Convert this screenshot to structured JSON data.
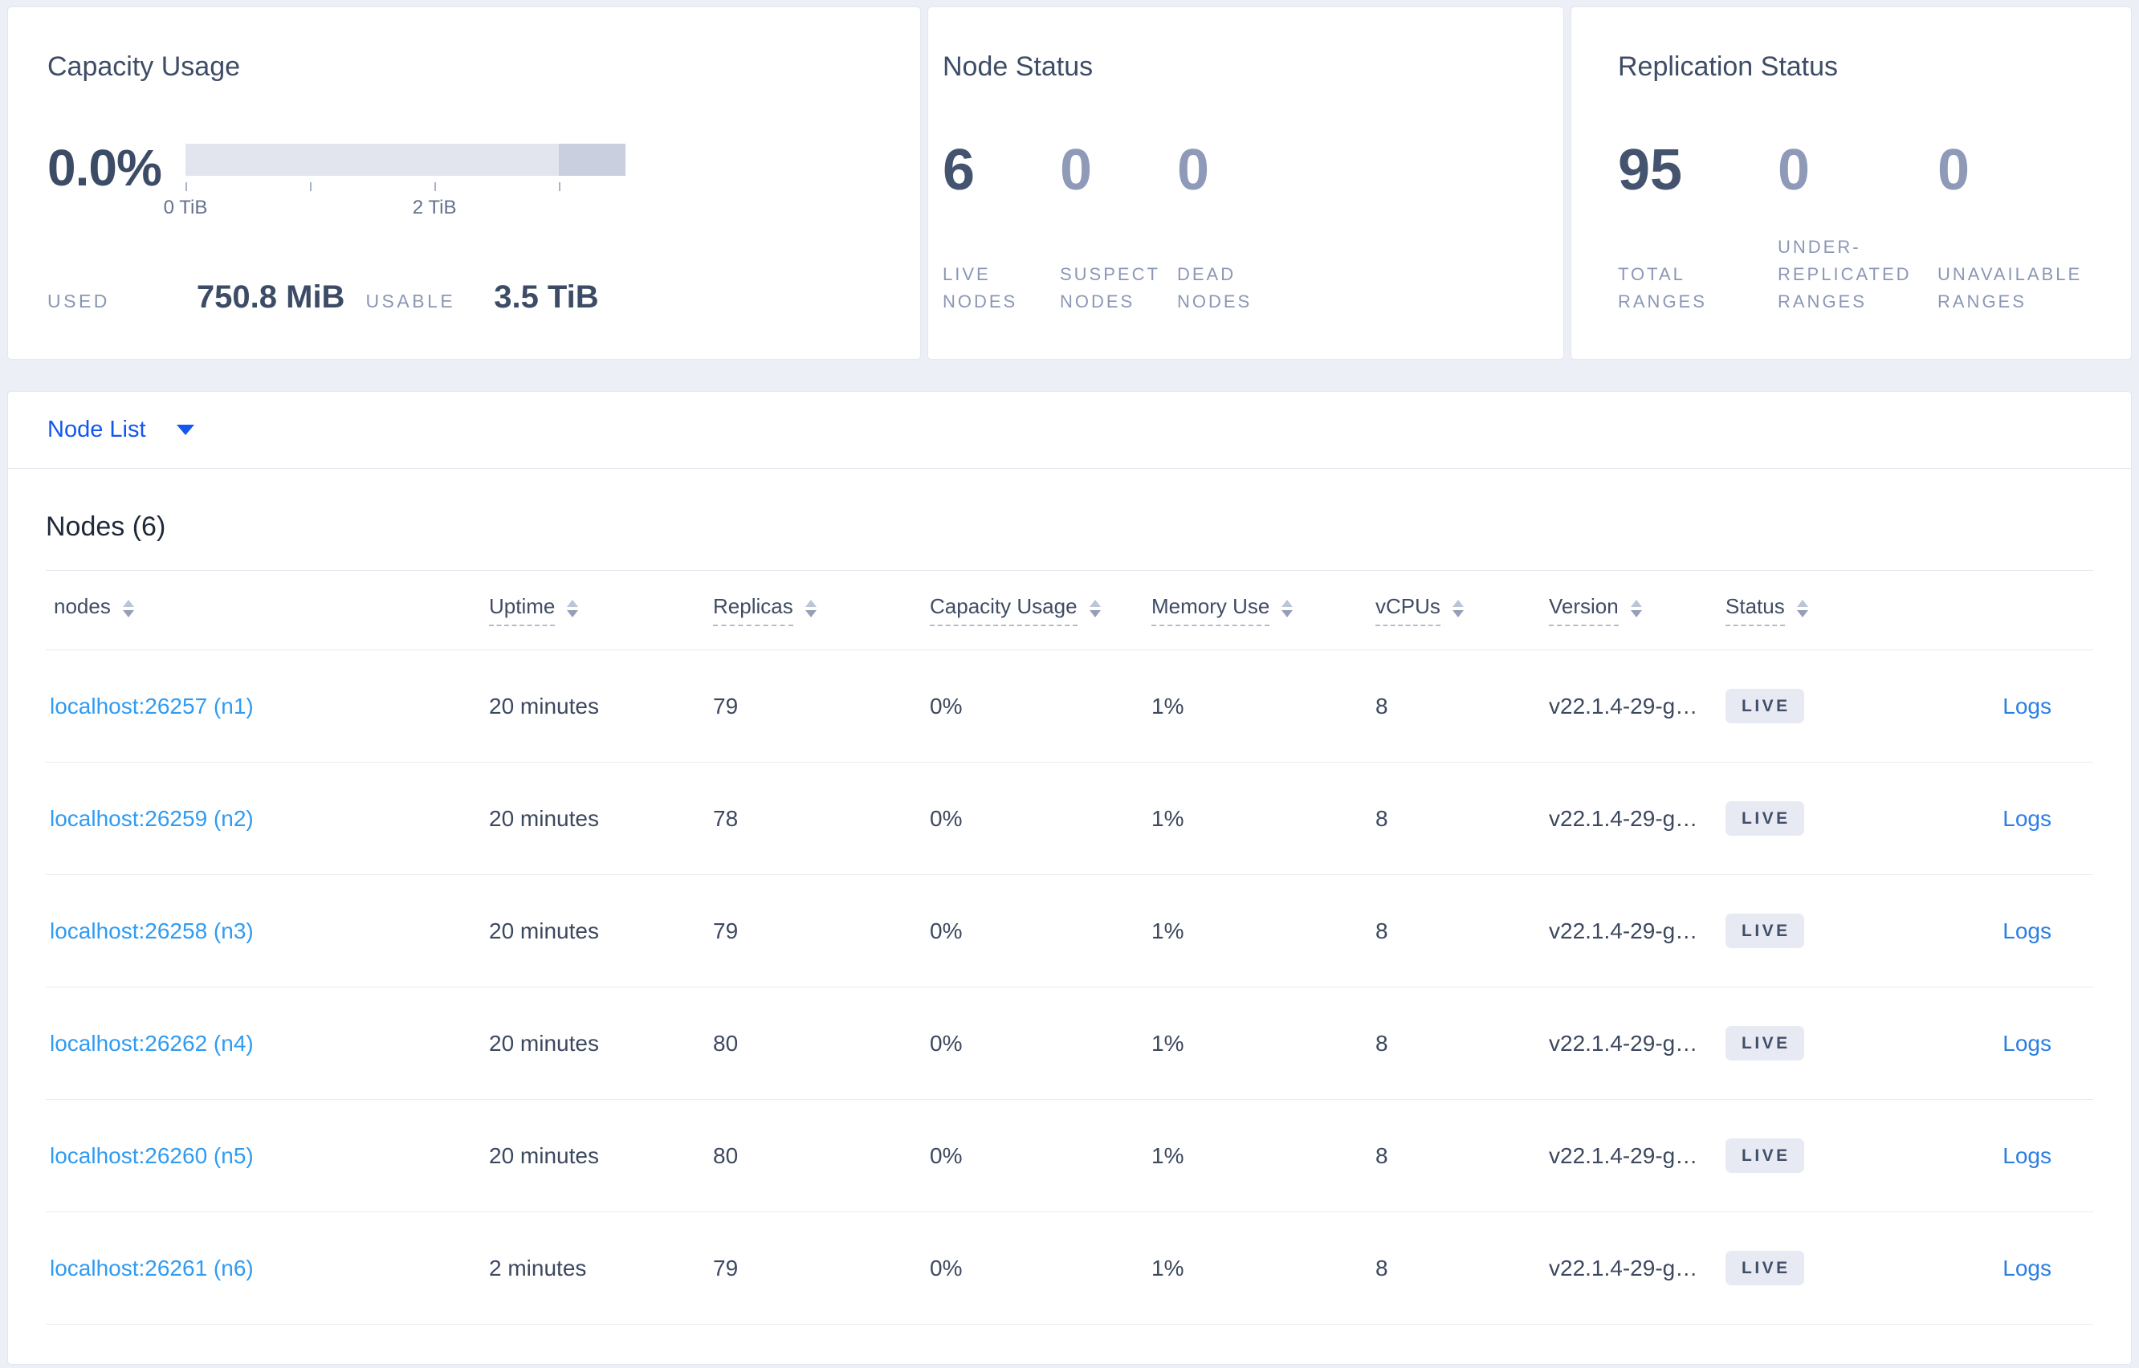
{
  "overview": {
    "capacity": {
      "title": "Capacity Usage",
      "percent": "0.0%",
      "axis_ticks": [
        {
          "pos": 0,
          "label": "0 TiB"
        },
        {
          "pos": 28.3,
          "label": ""
        },
        {
          "pos": 56.6,
          "label": "2 TiB"
        },
        {
          "pos": 84.9,
          "label": ""
        }
      ],
      "used_label": "USED",
      "used_value": "750.8 MiB",
      "usable_label": "USABLE",
      "usable_value": "3.5 TiB"
    },
    "node_status": {
      "title": "Node Status",
      "stats": [
        {
          "value": "6",
          "label": "LIVE NODES",
          "muted": false
        },
        {
          "value": "0",
          "label": "SUSPECT NODES",
          "muted": true
        },
        {
          "value": "0",
          "label": "DEAD NODES",
          "muted": true
        }
      ]
    },
    "replication_status": {
      "title": "Replication Status",
      "stats": [
        {
          "value": "95",
          "label": "TOTAL RANGES",
          "muted": false
        },
        {
          "value": "0",
          "label": "UNDER-REPLICATED RANGES",
          "muted": true
        },
        {
          "value": "0",
          "label": "UNAVAILABLE RANGES",
          "muted": true
        }
      ]
    }
  },
  "view_selector": {
    "label": "Node List"
  },
  "nodes_table": {
    "heading": "Nodes (6)",
    "columns": [
      {
        "label": "nodes",
        "underlined": false
      },
      {
        "label": "Uptime",
        "underlined": true
      },
      {
        "label": "Replicas",
        "underlined": true
      },
      {
        "label": "Capacity Usage",
        "underlined": true
      },
      {
        "label": "Memory Use",
        "underlined": true
      },
      {
        "label": "vCPUs",
        "underlined": true
      },
      {
        "label": "Version",
        "underlined": true
      },
      {
        "label": "Status",
        "underlined": true
      }
    ],
    "logs_label": "Logs",
    "rows": [
      {
        "node": "localhost:26257 (n1)",
        "uptime": "20 minutes",
        "replicas": "79",
        "capacity": "0%",
        "memory": "1%",
        "vcpus": "8",
        "version": "v22.1.4-29-g…",
        "status": "LIVE"
      },
      {
        "node": "localhost:26259 (n2)",
        "uptime": "20 minutes",
        "replicas": "78",
        "capacity": "0%",
        "memory": "1%",
        "vcpus": "8",
        "version": "v22.1.4-29-g…",
        "status": "LIVE"
      },
      {
        "node": "localhost:26258 (n3)",
        "uptime": "20 minutes",
        "replicas": "79",
        "capacity": "0%",
        "memory": "1%",
        "vcpus": "8",
        "version": "v22.1.4-29-g…",
        "status": "LIVE"
      },
      {
        "node": "localhost:26262 (n4)",
        "uptime": "20 minutes",
        "replicas": "80",
        "capacity": "0%",
        "memory": "1%",
        "vcpus": "8",
        "version": "v22.1.4-29-g…",
        "status": "LIVE"
      },
      {
        "node": "localhost:26260 (n5)",
        "uptime": "20 minutes",
        "replicas": "80",
        "capacity": "0%",
        "memory": "1%",
        "vcpus": "8",
        "version": "v22.1.4-29-g…",
        "status": "LIVE"
      },
      {
        "node": "localhost:26261 (n6)",
        "uptime": "2 minutes",
        "replicas": "79",
        "capacity": "0%",
        "memory": "1%",
        "vcpus": "8",
        "version": "v22.1.4-29-g…",
        "status": "LIVE"
      }
    ]
  },
  "colors": {
    "accent_blue": "#1356f0",
    "node_link_blue": "#2f9bf2",
    "logs_link_blue": "#2b7fe4",
    "badge_bg": "#e7eaf2",
    "badge_text": "#414e69",
    "bar_light": "#e2e5ee",
    "bar_dark": "#c9cfdf"
  }
}
